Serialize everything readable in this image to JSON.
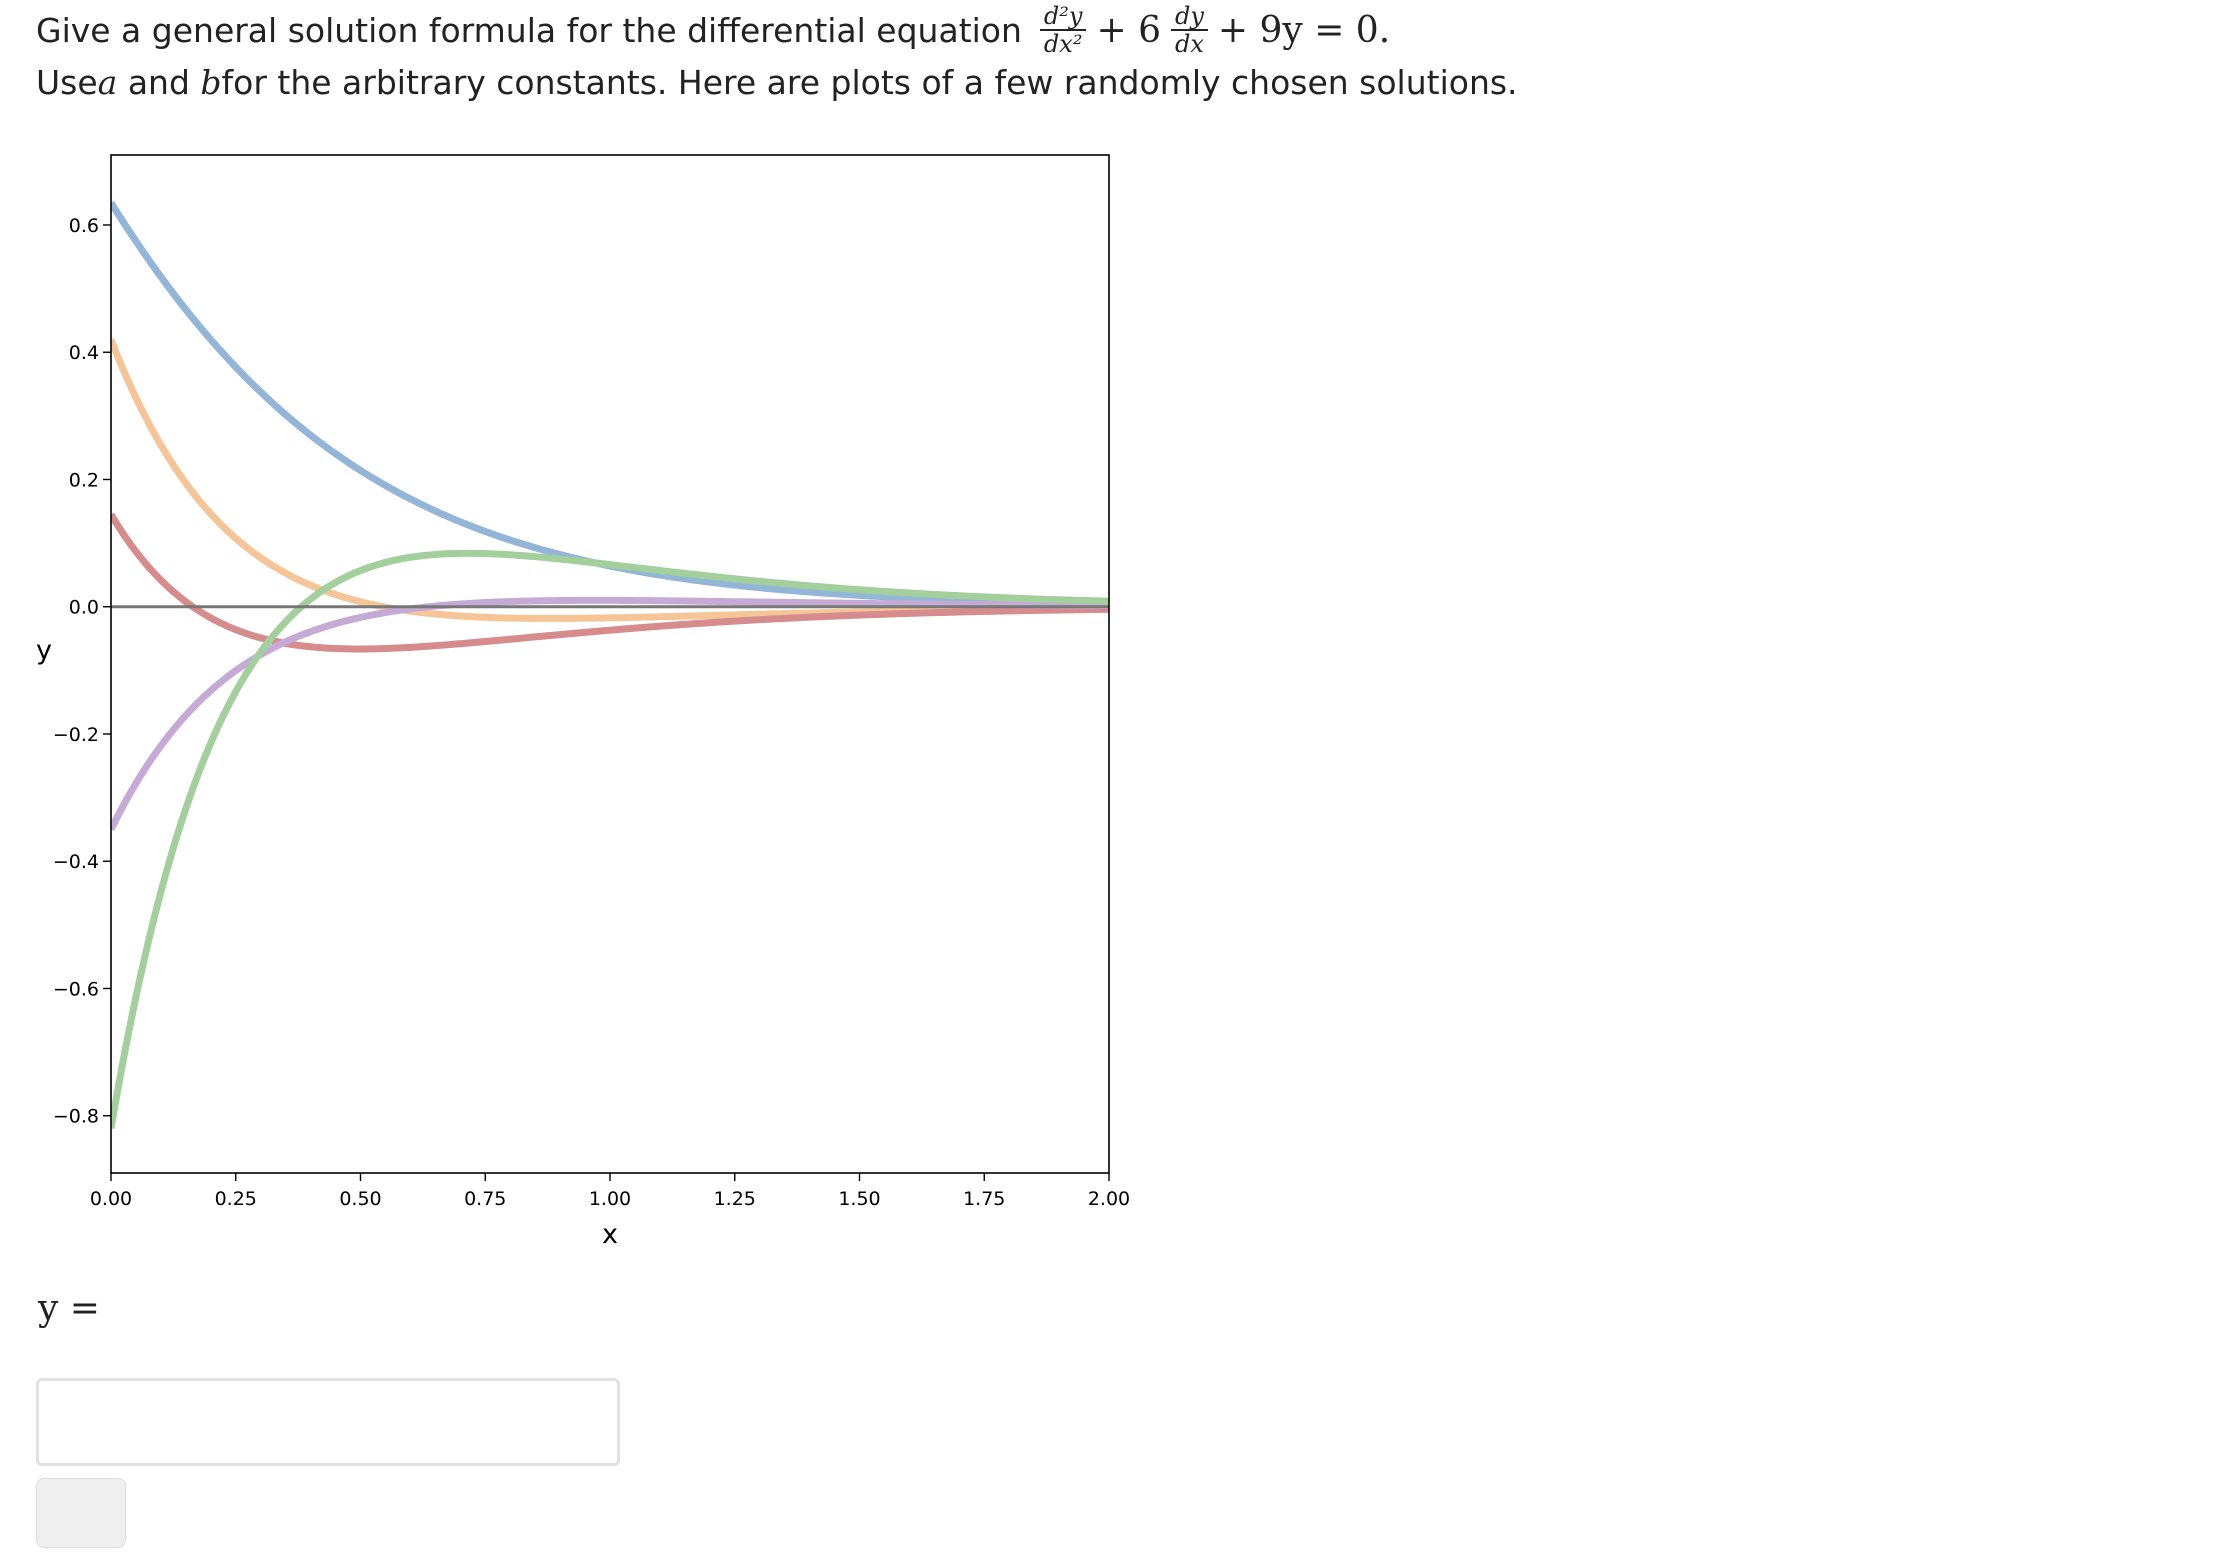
{
  "question": {
    "line1_text": "Give a general solution formula for the differential equation",
    "equation": {
      "d2_num": "d²y",
      "d2_den": "dx²",
      "plus6": "+ 6",
      "d1_num": "dy",
      "d1_den": "dx",
      "tail": "+ 9y = 0."
    },
    "line2_pre": "Use ",
    "const_a": "a",
    "line2_and": " and ",
    "const_b": "b",
    "line2_post": " for the arbitrary constants. Here are plots of a few randomly chosen solutions."
  },
  "chart_data": {
    "type": "line",
    "xlabel": "x",
    "ylabel": "y",
    "xlim": [
      0,
      2
    ],
    "ylim": [
      -0.89,
      0.71
    ],
    "xticks": [
      "0.00",
      "0.25",
      "0.50",
      "0.75",
      "1.00",
      "1.25",
      "1.50",
      "1.75",
      "2.00"
    ],
    "yticks": [
      "0.6",
      "0.4",
      "0.2",
      "0.0",
      "−0.2",
      "−0.4",
      "−0.6",
      "−0.8"
    ],
    "zero_line": true,
    "series": [
      {
        "color": "#92b5d8",
        "a": 0.635,
        "b": 0.65
      },
      {
        "color": "#f5c597",
        "a": 0.42,
        "b": -0.77
      },
      {
        "color": "#d68b8d",
        "a": 0.145,
        "b": -0.885
      },
      {
        "color": "#c5aad6",
        "a": -0.35,
        "b": 0.55
      },
      {
        "color": "#a2cf9c",
        "a": -0.82,
        "b": 2.15
      }
    ]
  },
  "answer": {
    "label": "y =",
    "input_value": ""
  }
}
